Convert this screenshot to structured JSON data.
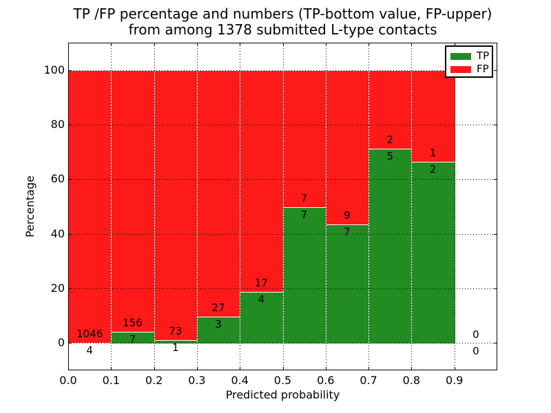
{
  "chart_data": {
    "type": "bar",
    "stacked": true,
    "normalized_to_percent": true,
    "title": "TP /FP percentage and numbers (TP-bottom value, FP-upper)\nfrom among 1378 submitted L-type contacts",
    "title_line1": "TP /FP percentage and numbers (TP-bottom value, FP-upper)",
    "title_line2": "from among 1378 submitted L-type contacts",
    "total_submitted": 1378,
    "xlabel": "Predicted probability",
    "ylabel": "Percentage",
    "xlim": [
      0.0,
      1.0
    ],
    "ylim": [
      -10,
      110
    ],
    "grid": true,
    "grid_style": "dotted",
    "legend_position": "upper right",
    "x_tick_labels": [
      "0.0",
      "0.1",
      "0.2",
      "0.3",
      "0.4",
      "0.5",
      "0.6",
      "0.7",
      "0.8",
      "0.9"
    ],
    "y_tick_values": [
      0,
      20,
      40,
      60,
      80,
      100
    ],
    "bin_edges": [
      0.0,
      0.1,
      0.2,
      0.3,
      0.4,
      0.5,
      0.6,
      0.7,
      0.8,
      0.9,
      1.0
    ],
    "series": [
      {
        "name": "TP",
        "color": "#228b22",
        "counts": [
          4,
          7,
          1,
          3,
          4,
          7,
          7,
          5,
          2,
          0
        ]
      },
      {
        "name": "FP",
        "color": "#ff1a1a",
        "counts": [
          1046,
          156,
          73,
          27,
          17,
          7,
          9,
          2,
          1,
          0
        ]
      }
    ],
    "bar_edge_color": "#ffffff",
    "text_color": "#000000"
  }
}
